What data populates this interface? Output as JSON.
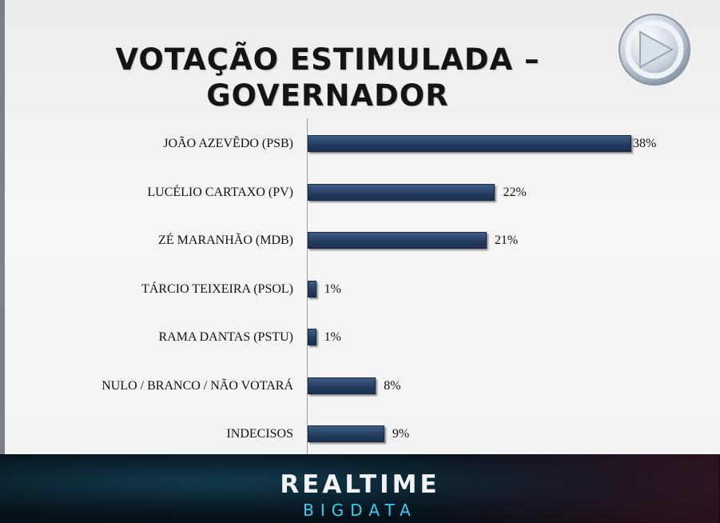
{
  "title_line1": "VOTAÇÃO ESTIMULADA –",
  "title_line2": "GOVERNADOR",
  "chart_data": {
    "type": "bar",
    "orientation": "horizontal",
    "title": "VOTAÇÃO ESTIMULADA – GOVERNADOR",
    "categories": [
      "JOÃO AZEVÊDO (PSB)",
      "LUCÉLIO CARTAXO (PV)",
      "ZÉ MARANHÃO (MDB)",
      "TÁRCIO TEIXEIRA (PSOL)",
      "RAMA DANTAS (PSTU)",
      "NULO / BRANCO / NÃO VOTARÁ",
      "INDECISOS"
    ],
    "values": [
      38,
      22,
      21,
      1,
      1,
      8,
      9
    ],
    "value_labels": [
      "38%",
      "22%",
      "21%",
      "1%",
      "1%",
      "8%",
      "9%"
    ],
    "unit": "%",
    "bar_color": "#2b4670",
    "grid": false,
    "legend": "none"
  },
  "footer": {
    "brand_line1": "REALTIME",
    "brand_line2": "BIGDATA"
  },
  "colors": {
    "footer_accent": "#35d0ef",
    "frame_border": "#7b7f86"
  }
}
